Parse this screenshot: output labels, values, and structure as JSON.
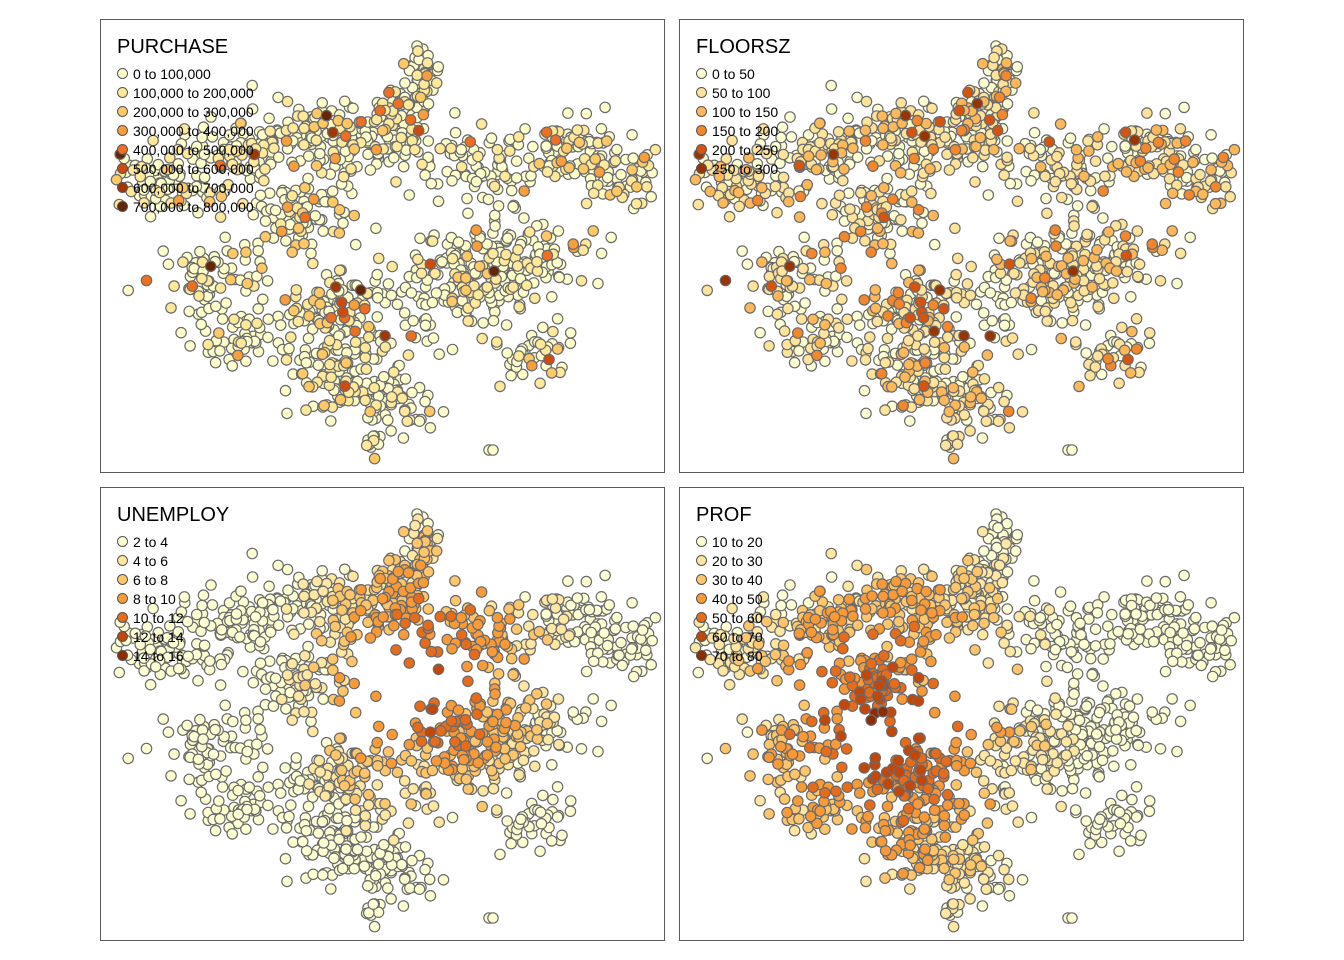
{
  "maps": [
    {
      "title": "PURCHASE",
      "var": "purchase",
      "legend": [
        {
          "label": "0 to 100,000",
          "color": "#ffffcc"
        },
        {
          "label": "100,000 to 200,000",
          "color": "#fee99a"
        },
        {
          "label": "200,000 to 300,000",
          "color": "#fec865"
        },
        {
          "label": "300,000 to 400,000",
          "color": "#f99e3c"
        },
        {
          "label": "400,000 to 500,000",
          "color": "#ee6f21"
        },
        {
          "label": "500,000 to 600,000",
          "color": "#cf4a0f"
        },
        {
          "label": "600,000 to 700,000",
          "color": "#a33605"
        },
        {
          "label": "700,000 to 800,000",
          "color": "#662506"
        }
      ]
    },
    {
      "title": "FLOORSZ",
      "var": "floorsz",
      "legend": [
        {
          "label": "0 to 50",
          "color": "#ffffd4"
        },
        {
          "label": "50 to 100",
          "color": "#fee39a"
        },
        {
          "label": "100 to 150",
          "color": "#fdb85a"
        },
        {
          "label": "150 to 200",
          "color": "#f4862b"
        },
        {
          "label": "200 to 250",
          "color": "#d55410"
        },
        {
          "label": "250 to 300",
          "color": "#993404"
        }
      ]
    },
    {
      "title": "UNEMPLOY",
      "var": "unemploy",
      "legend": [
        {
          "label": "2 to 4",
          "color": "#ffffd4"
        },
        {
          "label": "4 to 6",
          "color": "#fee7a2"
        },
        {
          "label": "6 to 8",
          "color": "#fec66a"
        },
        {
          "label": "8 to 10",
          "color": "#f99a38"
        },
        {
          "label": "10 to 12",
          "color": "#e66c1c"
        },
        {
          "label": "12 to 14",
          "color": "#c2470b"
        },
        {
          "label": "14 to 16",
          "color": "#8c2d04"
        }
      ]
    },
    {
      "title": "PROF",
      "var": "prof",
      "legend": [
        {
          "label": "10 to 20",
          "color": "#ffffd4"
        },
        {
          "label": "20 to 30",
          "color": "#fee7a2"
        },
        {
          "label": "30 to 40",
          "color": "#fec66a"
        },
        {
          "label": "40 to 50",
          "color": "#f99a38"
        },
        {
          "label": "50 to 60",
          "color": "#e66c1c"
        },
        {
          "label": "60 to 70",
          "color": "#c2470b"
        },
        {
          "label": "70 to 80",
          "color": "#8c2d04"
        }
      ]
    }
  ]
}
